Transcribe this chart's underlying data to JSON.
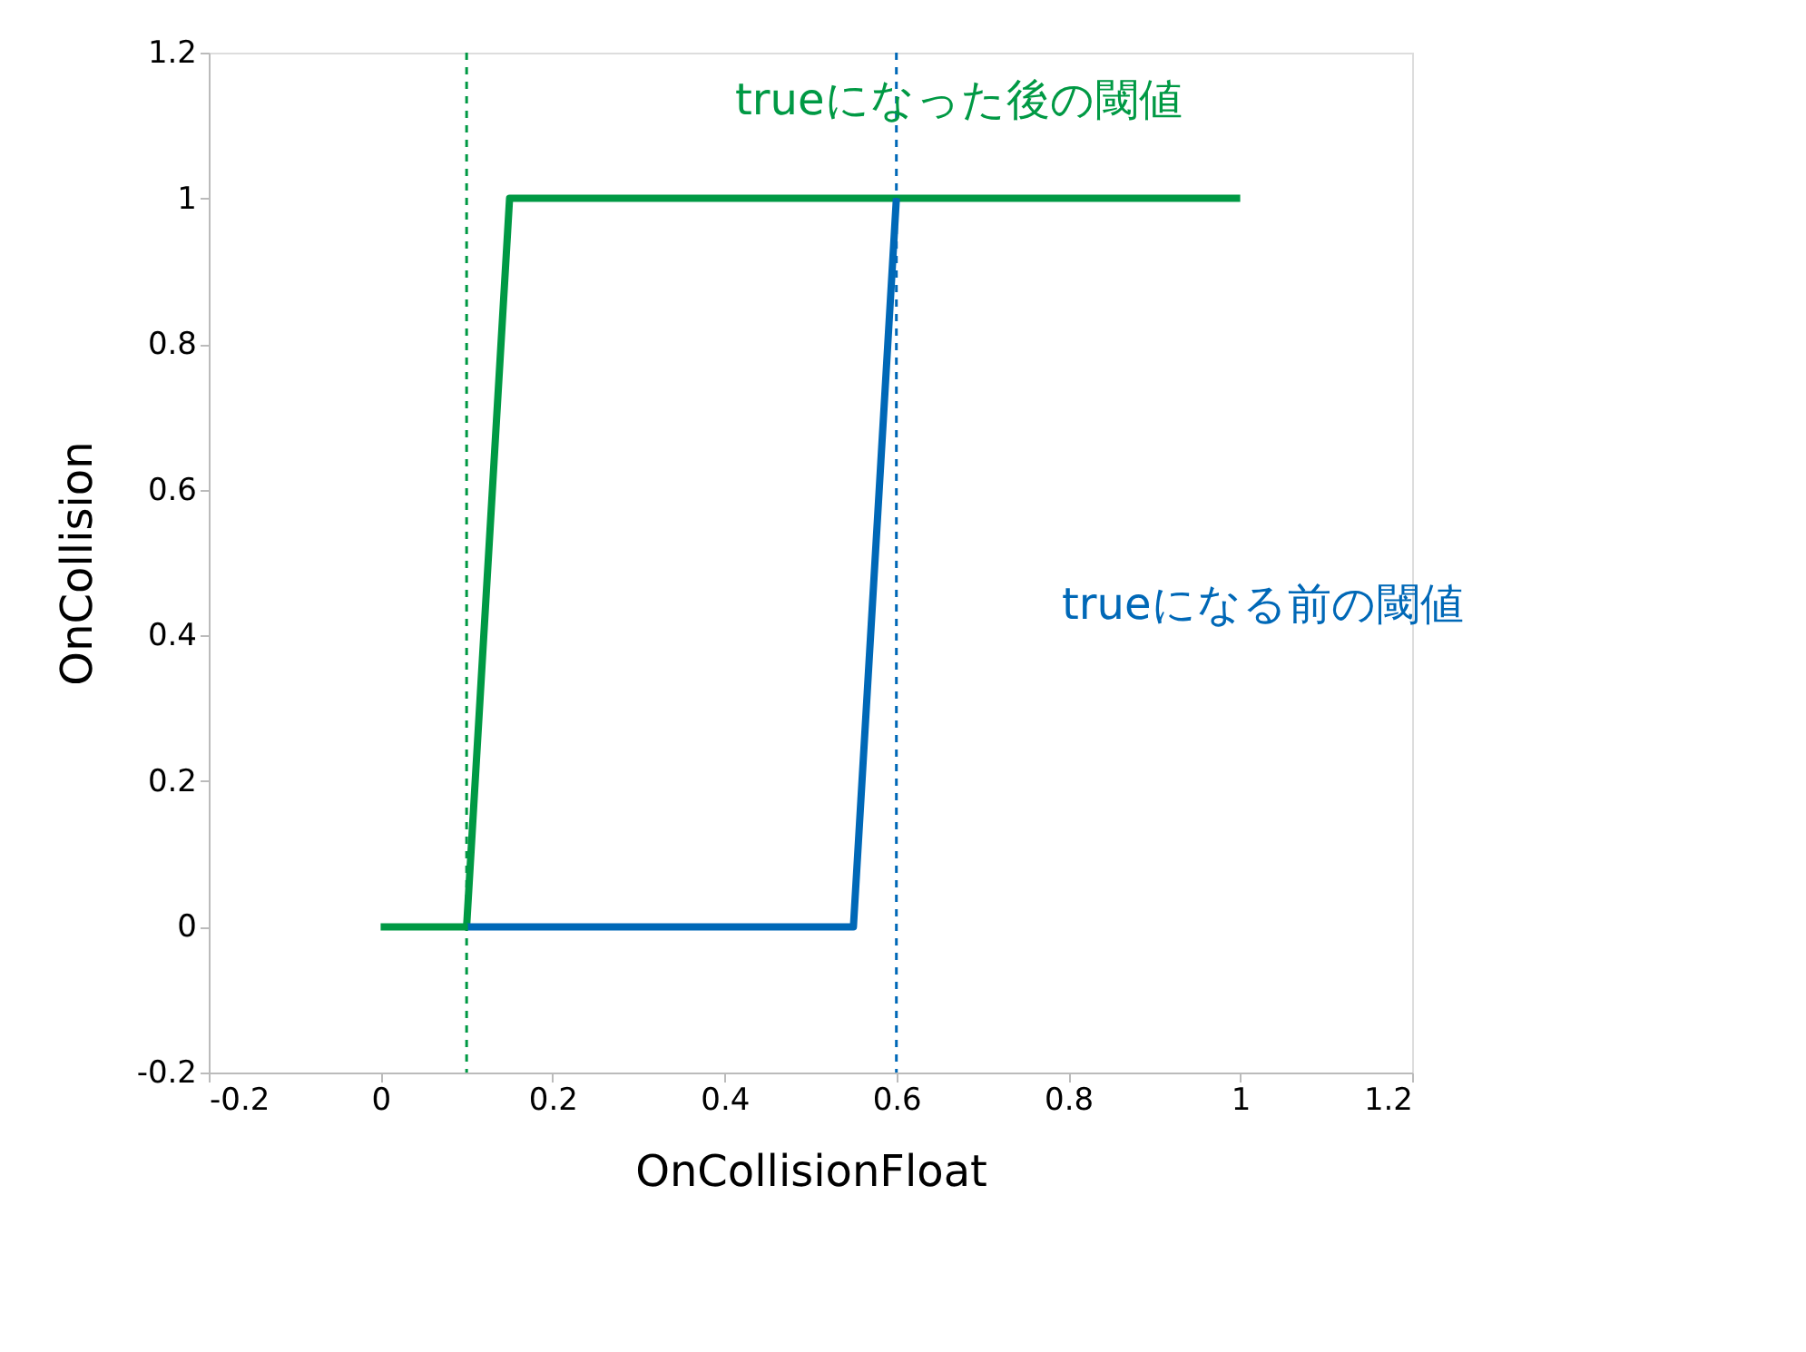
{
  "chart_data": {
    "type": "line",
    "xlabel": "OnCollisionFloat",
    "ylabel": "OnCollision",
    "xlim": [
      -0.2,
      1.2
    ],
    "xticks": [
      -0.2,
      0,
      0.2,
      0.4,
      0.6,
      0.8,
      1,
      1.2
    ],
    "ylim": [
      -0.2,
      1.2
    ],
    "yticks": [
      -0.2,
      0,
      0.2,
      0.4,
      0.6,
      0.8,
      1,
      1.2
    ],
    "grid": false,
    "marker": "none",
    "line_style": "solid",
    "series": [
      {
        "color": "#009944",
        "x": [
          0,
          0.1,
          0.15,
          1
        ],
        "values": [
          0,
          0,
          1,
          1
        ]
      },
      {
        "color": "#0068b7",
        "x": [
          0.1,
          0.55,
          0.6
        ],
        "values": [
          0,
          0,
          1
        ]
      }
    ],
    "ref_lines": [
      {
        "axis": "x",
        "value": 0.1,
        "color": "#009944",
        "line_style": "dashed"
      },
      {
        "axis": "x",
        "value": 0.6,
        "color": "#0068b7",
        "line_style": "dashed"
      }
    ],
    "annotations": [
      "trueになった後の閾値",
      "trueになる前の閾値"
    ]
  }
}
